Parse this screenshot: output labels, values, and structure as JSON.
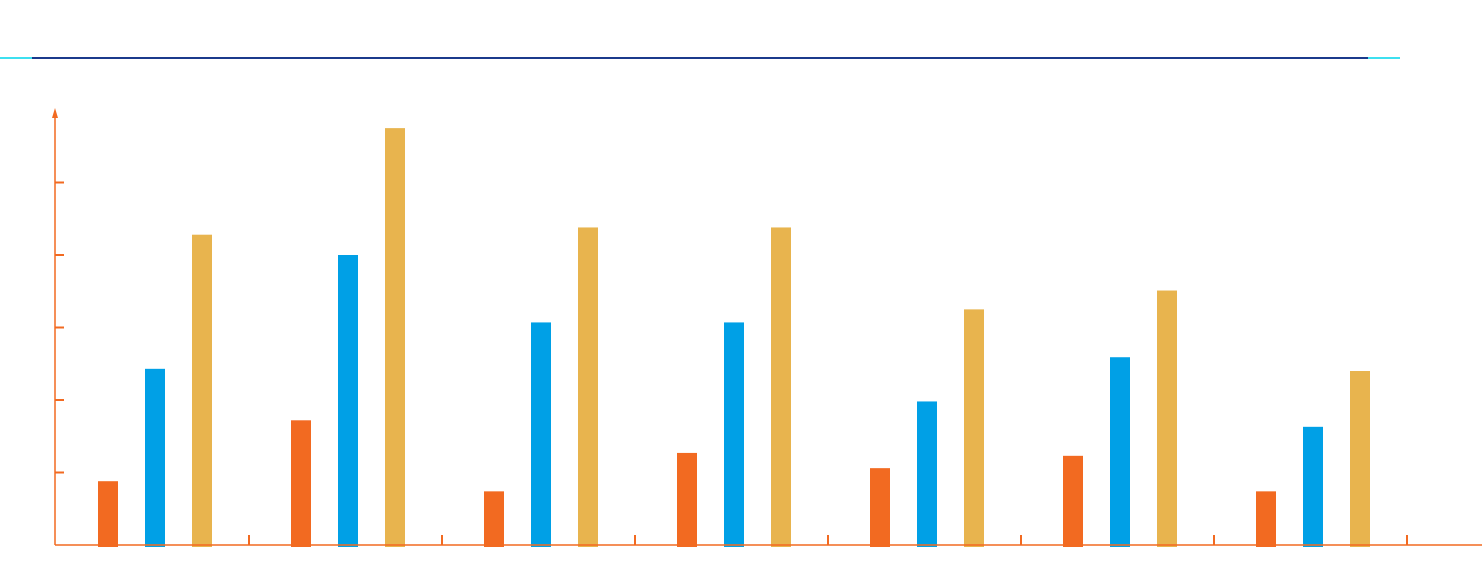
{
  "colors": {
    "background": "#ffffff",
    "header_line": "#1b3a8c",
    "header_line_accent": "#3de0f0",
    "axis": "#f26a21",
    "series": [
      "#f26a21",
      "#00a0e6",
      "#e8b44e"
    ]
  },
  "chart_data": {
    "type": "bar",
    "categories": [
      "",
      "",
      "",
      "",
      "",
      "",
      ""
    ],
    "series": [
      {
        "values": [
          0.88,
          1.72,
          0.74,
          1.27,
          1.06,
          1.23,
          0.74
        ]
      },
      {
        "values": [
          2.43,
          4.0,
          3.07,
          3.07,
          1.98,
          2.59,
          1.63
        ]
      },
      {
        "values": [
          4.28,
          5.75,
          4.38,
          4.38,
          3.25,
          3.51,
          2.4
        ]
      }
    ],
    "ylim": [
      0,
      6
    ],
    "yticks": [
      1,
      2,
      3,
      4,
      5
    ],
    "title": "",
    "xlabel": "",
    "ylabel": "",
    "legend": "none",
    "grid": false,
    "tick_labels_visible": false
  }
}
